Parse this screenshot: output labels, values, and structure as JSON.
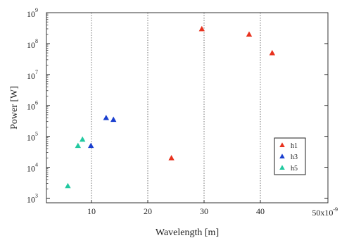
{
  "chart_data": {
    "type": "scatter",
    "xlabel": "Wavelength [m]",
    "ylabel": "Power [W]",
    "xlim": [
      2,
      52
    ],
    "ylim_log10": [
      2.85,
      9
    ],
    "y_scale": "log",
    "x_ticks": [
      "10",
      "20",
      "30",
      "40"
    ],
    "x_multiplier_label": "50x10",
    "x_multiplier_exponent": "-9",
    "y_tick_base": "10",
    "y_tick_exponents": [
      "3",
      "4",
      "5",
      "6",
      "7",
      "8",
      "9"
    ],
    "grid": true,
    "legend_position": "right",
    "series": [
      {
        "name": "h1",
        "color": "#e8321e",
        "marker": "triangle",
        "points": [
          [
            24.2,
            20000
          ],
          [
            29.6,
            300000000
          ],
          [
            38.0,
            200000000
          ],
          [
            42.1,
            50000000
          ]
        ]
      },
      {
        "name": "h3",
        "color": "#1a3fcf",
        "marker": "triangle",
        "points": [
          [
            9.9,
            50000
          ],
          [
            12.6,
            400000
          ],
          [
            13.9,
            350000
          ]
        ]
      },
      {
        "name": "h5",
        "color": "#22c9a0",
        "marker": "triangle",
        "points": [
          [
            5.8,
            2500
          ],
          [
            7.6,
            50000
          ],
          [
            8.4,
            80000
          ]
        ]
      }
    ]
  }
}
